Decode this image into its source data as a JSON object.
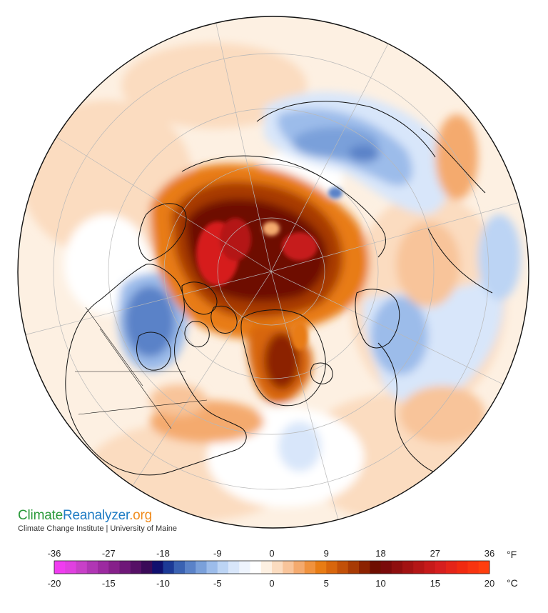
{
  "branding": {
    "logo_part1": "Climate",
    "logo_part2": "Reanalyzer",
    "logo_part3": ".org",
    "subtitle": "Climate Change Institute | University of Maine"
  },
  "legend": {
    "fahrenheit_ticks": [
      "-36",
      "-27",
      "-18",
      "-9",
      "0",
      "9",
      "18",
      "27",
      "36"
    ],
    "celsius_ticks": [
      "-20",
      "-15",
      "-10",
      "-5",
      "0",
      "5",
      "10",
      "15",
      "20"
    ],
    "unit_f": "°F",
    "unit_c": "°C",
    "colors": [
      "#f03cf0",
      "#e040e0",
      "#c840c8",
      "#b036b4",
      "#9c2aa0",
      "#86208a",
      "#6e1878",
      "#561066",
      "#3a0a58",
      "#10106e",
      "#1c3a96",
      "#3a62b2",
      "#5a82c8",
      "#7aa0da",
      "#9cbcea",
      "#bcd4f4",
      "#d8e6fa",
      "#eef4fd",
      "#ffffff",
      "#fdf0e2",
      "#fbdcc0",
      "#f8c49a",
      "#f4aa6e",
      "#f0923e",
      "#e87c14",
      "#d8660c",
      "#c25008",
      "#a83a04",
      "#8c2200",
      "#6e0e00",
      "#7a0a0a",
      "#8e0e0e",
      "#a21212",
      "#b41616",
      "#c61a1a",
      "#d61e1e",
      "#e42418",
      "#f02a10",
      "#f83410",
      "#ff3e0e"
    ]
  },
  "map": {
    "colors": {
      "strong_warm": "#7a0a00",
      "warm": "#d8660c",
      "mild_warm": "#f4aa6e",
      "slight_warm": "#fbdcc0",
      "slight_cool": "#d8e6fa",
      "cool": "#7aa0da",
      "strong_cool": "#3a62b2",
      "hot_core": "#d61e1e"
    }
  }
}
